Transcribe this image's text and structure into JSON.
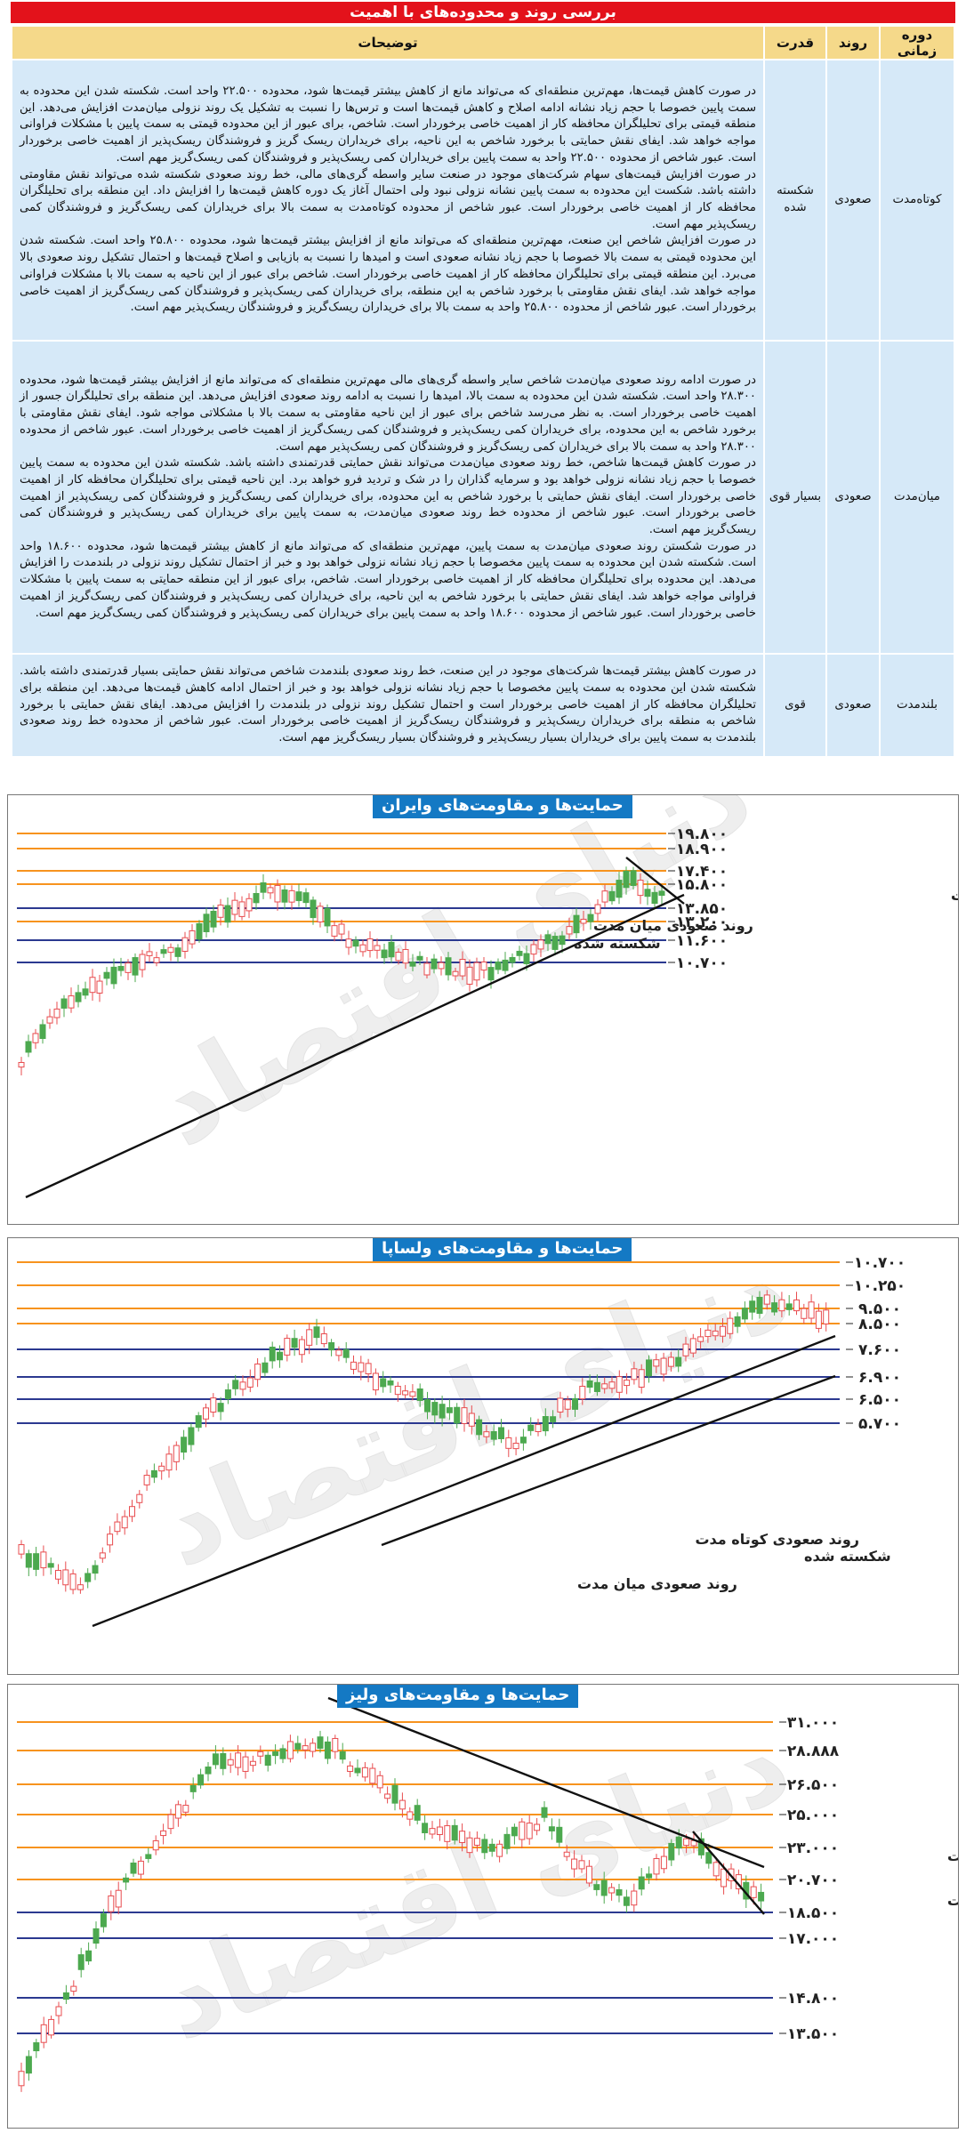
{
  "table": {
    "title": "بررسی روند و محدوده‌های با اهمیت",
    "headers": {
      "period": "دوره زمانی",
      "trend": "روند",
      "strength": "قدرت",
      "desc": "توضیحات"
    },
    "rows": [
      {
        "period": "کوتاه‌مدت",
        "trend": "صعودی",
        "strength": "شکسته شده",
        "paragraphs": [
          "در صورت کاهش قیمت‌ها، مهم‌ترین منطقه‌ای که می‌تواند مانع از کاهش بیشتر قیمت‌ها شود، محدوده ۲۲.۵۰۰ واحد است. شکسته شدن این محدوده به سمت پایین خصوصا با حجم زیاد نشانه ادامه اصلاح و کاهش قیمت‌ها است و ترس‌ها را نسبت به تشکیل یک روند نزولی میان‌مدت افزایش می‌دهد. این منطقه قیمتی برای تحلیلگران محافظه کار از اهمیت خاصی برخوردار است. شاخص، برای عبور از این محدوده قیمتی به سمت پایین با مشکلات فراوانی مواجه خواهد شد. ایفای نقش حمایتی با برخورد شاخص به این ناحیه، برای خریداران ریسک گریز و فروشندگان ریسک‌پذیر از اهمیت خاصی برخوردار است. عبور شاخص از محدوده ۲۲.۵۰۰ واحد به سمت پایین برای خریداران کمی ریسک‌پذیر و فروشندگان کمی ریسک‌گریز مهم است.",
          "در صورت افزایش قیمت‌های سهام شرکت‌های موجود در صنعت سایر واسطه گری‌های مالی، خط روند صعودی شکسته شده می‌تواند نقش مقاومتی داشته باشد. شکست این محدوده به سمت پایین نشانه نزولی نبود ولی احتمال آغاز یک دوره کاهش قیمت‌ها را افزایش داد. این منطقه برای تحلیلگران محافظه کار از اهمیت خاصی برخوردار است. عبور شاخص از محدوده کوتاه‌مدت به سمت بالا برای خریداران کمی ریسک‌گریز و فروشندگان کمی ریسک‌پذیر مهم است.",
          "در صورت افزایش شاخص این صنعت، مهم‌ترین منطقه‌ای که می‌تواند مانع از افزایش بیشتر قیمت‌ها شود، محدوده ۲۵.۸۰۰ واحد است. شکسته شدن این محدوده قیمتی به سمت بالا خصوصا با حجم زیاد نشانه صعودی است و امیدها را نسبت به بازیابی و اصلاح قیمت‌ها و احتمال تشکیل روند صعودی بالا می‌برد. این منطقه قیمتی برای تحلیلگران محافظه کار از اهمیت خاصی برخوردار است. شاخص برای عبور از این ناحیه به سمت بالا با مشکلات فراوانی مواجه خواهد شد. ایفای نقش مقاومتی با برخورد شاخص به این منطقه، برای خریداران کمی ریسک‌پذیر و فروشندگان کمی ریسک‌گریز از اهمیت خاصی برخوردار است. عبور شاخص از محدوده ۲۵.۸۰۰ واحد به سمت بالا برای خریداران ریسک‌گریز و فروشندگان ریسک‌پذیر مهم است."
        ]
      },
      {
        "period": "میان‌مدت",
        "trend": "صعودی",
        "strength": "بسیار قوی",
        "paragraphs": [
          "در صورت ادامه روند صعودی میان‌مدت شاخص سایر واسطه گری‌های مالی مهم‌ترین منطقه‌ای که می‌تواند مانع از افزایش بیشتر قیمت‌ها شود، محدوده ۲۸.۳۰۰ واحد است. شکسته شدن این محدوده به سمت بالا، امیدها را نسبت به ادامه روند صعودی افزایش می‌دهد. این منطقه برای تحلیلگران جسور از اهمیت خاصی برخوردار است. به نظر می‌رسد شاخص برای عبور از این ناحیه مقاومتی به سمت بالا با مشکلاتی مواجه شود. ایفای نقش مقاومتی با برخورد شاخص به این محدوده، برای خریداران کمی ریسک‌پذیر و فروشندگان کمی ریسک‌گریز از اهمیت خاصی برخوردار است. عبور شاخص از محدوده ۲۸.۳۰۰ واحد به سمت بالا برای خریداران کمی ریسک‌گریز و فروشندگان کمی ریسک‌پذیر مهم است.",
          "در صورت کاهش قیمت‌ها شاخص، خط روند صعودی میان‌مدت می‌تواند نقش حمایتی قدرتمندی داشته باشد. شکسته شدن این محدوده به سمت پایین خصوصا با حجم زیاد نشانه نزولی خواهد بود و سرمایه گذاران را در شک و تردید فرو خواهد برد. این ناحیه قیمتی برای تحلیلگران محافظه کار از اهمیت خاصی برخوردار است. ایفای نقش حمایتی با برخورد شاخص به این محدوده، برای خریداران کمی ریسک‌گریز و فروشندگان کمی ریسک‌پذیر از اهمیت خاصی برخوردار است. عبور شاخص از محدوده خط روند صعودی میان‌مدت، به سمت پایین برای خریداران کمی ریسک‌پذیر و فروشندگان کمی ریسک‌گریز مهم است.",
          "در صورت شکستن روند صعودی میان‌مدت به سمت پایین، مهم‌ترین منطقه‌ای که می‌تواند مانع از کاهش بیشتر قیمت‌ها شود، محدوده ۱۸.۶۰۰ واحد است. شکسته شدن این محدوده به سمت پایین مخصوصا با حجم زیاد نشانه نزولی خواهد بود و خبر از احتمال تشکیل روند نزولی در بلندمدت را افزایش می‌دهد. این محدوده برای تحلیلگران محافظه کار از اهمیت خاصی برخوردار است. شاخص، برای عبور از این منطقه حمایتی به سمت پایین با مشکلات فراوانی مواجه خواهد شد. ایفای نقش حمایتی با برخورد شاخص به این ناحیه، برای خریداران کمی ریسک‌پذیر و فروشندگان کمی ریسک‌گریز از اهمیت خاصی برخوردار است. عبور شاخص از محدوده ۱۸.۶۰۰ واحد به سمت پایین برای خریداران کمی ریسک‌پذیر و فروشندگان کمی ریسک‌گریز مهم است."
        ]
      },
      {
        "period": "بلندمدت",
        "trend": "صعودی",
        "strength": "قوی",
        "paragraphs": [
          "در صورت کاهش بیشتر قیمت‌ها شرکت‌های موجود در این صنعت، خط روند صعودی بلندمدت شاخص می‌تواند نقش حمایتی بسیار قدرتمندی داشته باشد. شکسته شدن این محدوده به سمت پایین مخصوصا با حجم زیاد نشانه نزولی خواهد بود و خبر از احتمال ادامه کاهش قیمت‌ها می‌دهد. این منطقه برای تحلیلگران محافظه کار از اهمیت خاصی برخوردار است و احتمال تشکیل روند نزولی در بلندمدت را افزایش می‌دهد. ایفای نقش حمایتی با برخورد شاخص به منطقه برای خریداران ریسک‌پذیر و فروشندگان ریسک‌گریز از اهمیت خاصی برخوردار است. عبور شاخص از محدوده خط روند صعودی بلندمدت به سمت پایین برای خریداران بسیار ریسک‌پذیر و فروشندگان بسیار ریسک‌گریز مهم است."
        ]
      }
    ]
  },
  "watermark": "دنیای اقتصاد",
  "colors": {
    "up": "#e84c4f",
    "down": "#4ca94f",
    "support": "#2b3990",
    "resistance": "#f7931e",
    "title_bg": "#1479c4",
    "table_header": "#f5d98a",
    "table_row": "#d6e9f8"
  },
  "charts": [
    {
      "title": "حمایت‌ها و مقاومت‌های وایران",
      "levels": [
        {
          "label": "۱۹.۸۰۰",
          "value": 19800,
          "kind": "resistance"
        },
        {
          "label": "۱۸.۹۰۰",
          "value": 18900,
          "kind": "resistance"
        },
        {
          "label": "۱۷.۴۰۰",
          "value": 17400,
          "kind": "resistance"
        },
        {
          "label": "۱۵.۸۰۰",
          "value": 15800,
          "kind": "resistance"
        },
        {
          "label": "۱۳.۸۵۰",
          "value": 13850,
          "kind": "support"
        },
        {
          "label": "۱۳.۲۰۰",
          "value": 13200,
          "kind": "resistance"
        },
        {
          "label": "۱۱.۶۰۰",
          "value": 11600,
          "kind": "support"
        },
        {
          "label": "۱۰.۷۰۰",
          "value": 10700,
          "kind": "support"
        }
      ],
      "annotations": [
        {
          "text": "روند نزولی کوتاه مدت"
        },
        {
          "text": "روند صعودی میان مدت"
        },
        {
          "text": "شکسته شده"
        }
      ]
    },
    {
      "title": "حمایت‌ها و مقاومت‌های ولساپا",
      "levels": [
        {
          "label": "۱۰.۷۰۰",
          "value": 10700,
          "kind": "resistance"
        },
        {
          "label": "۱۰.۲۵۰",
          "value": 10250,
          "kind": "resistance"
        },
        {
          "label": "۹.۵۰۰",
          "value": 9500,
          "kind": "resistance"
        },
        {
          "label": "۸.۵۰۰",
          "value": 8500,
          "kind": "resistance"
        },
        {
          "label": "۷.۶۰۰",
          "value": 7600,
          "kind": "support"
        },
        {
          "label": "۶.۹۰۰",
          "value": 6900,
          "kind": "support"
        },
        {
          "label": "۶.۵۰۰",
          "value": 6500,
          "kind": "support"
        },
        {
          "label": "۵.۷۰۰",
          "value": 5700,
          "kind": "support"
        }
      ],
      "annotations": [
        {
          "text": "روند صعودی کوتاه مدت"
        },
        {
          "text": "شکسته شده"
        },
        {
          "text": "روند صعودی میان مدت"
        }
      ]
    },
    {
      "title": "حمایت‌ها و مقاومت‌های ولیز",
      "levels": [
        {
          "label": "۳۱.۰۰۰",
          "value": 31000,
          "kind": "resistance"
        },
        {
          "label": "۲۸.۸۸۸",
          "value": 28888,
          "kind": "resistance"
        },
        {
          "label": "۲۶.۵۰۰",
          "value": 26500,
          "kind": "resistance"
        },
        {
          "label": "۲۵.۰۰۰",
          "value": 25000,
          "kind": "resistance"
        },
        {
          "label": "۲۳.۰۰۰",
          "value": 23000,
          "kind": "resistance"
        },
        {
          "label": "۲۰.۷۰۰",
          "value": 20700,
          "kind": "resistance"
        },
        {
          "label": "۱۸.۵۰۰",
          "value": 18500,
          "kind": "support"
        },
        {
          "label": "۱۷.۰۰۰",
          "value": 17000,
          "kind": "support"
        },
        {
          "label": "۱۴.۸۰۰",
          "value": 14800,
          "kind": "support"
        },
        {
          "label": "۱۳.۵۰۰",
          "value": 13500,
          "kind": "support"
        }
      ],
      "annotations": [
        {
          "text": "روند نزولی میان مدت"
        },
        {
          "text": "روند نزولی کوتاه مدت"
        }
      ]
    }
  ]
}
